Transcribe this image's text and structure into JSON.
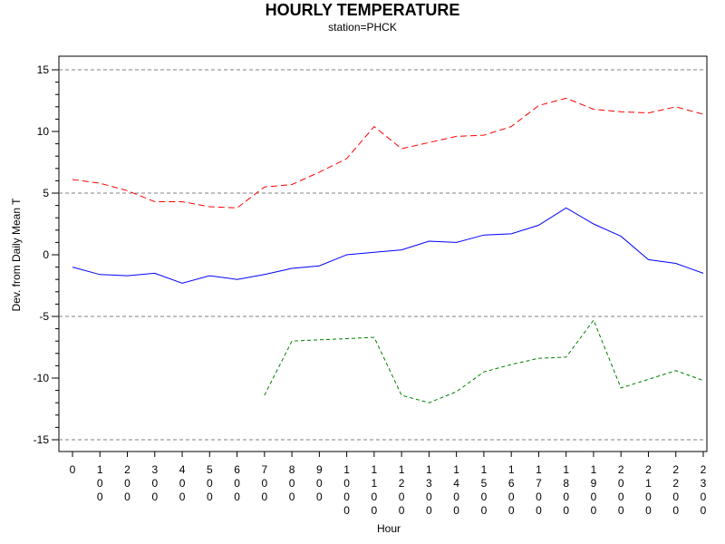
{
  "chart_data": {
    "type": "line",
    "title": "HOURLY TEMPERATURE",
    "subtitle": "station=PHCK",
    "xlabel": "Hour",
    "ylabel": "Dev. from Daily Mean T",
    "x": [
      0,
      100,
      200,
      300,
      400,
      500,
      600,
      700,
      800,
      900,
      1000,
      1100,
      1200,
      1300,
      1400,
      1500,
      1600,
      1700,
      1800,
      1900,
      2000,
      2100,
      2200,
      2300
    ],
    "x_tick_labels": [
      "0",
      "100",
      "200",
      "300",
      "400",
      "500",
      "600",
      "700",
      "800",
      "900",
      "1000",
      "1100",
      "1200",
      "1300",
      "1400",
      "1500",
      "1600",
      "1700",
      "1800",
      "1900",
      "2000",
      "2100",
      "2200",
      "2300"
    ],
    "ylim": [
      -15,
      15
    ],
    "y_ticks": [
      15,
      10,
      5,
      0,
      -5,
      -10,
      -15
    ],
    "reference_lines": [
      15,
      5,
      -5,
      -15
    ],
    "grid": false,
    "series": [
      {
        "color": "#ff0000",
        "dash": "dashed",
        "values": [
          6.1,
          5.8,
          5.2,
          4.3,
          4.3,
          3.9,
          3.8,
          5.5,
          5.7,
          6.7,
          7.8,
          10.4,
          8.6,
          9.1,
          9.6,
          9.7,
          10.4,
          12.1,
          12.7,
          11.8,
          11.6,
          11.5,
          12.0,
          11.4
        ]
      },
      {
        "color": "#0000ff",
        "dash": "solid",
        "values": [
          -1.0,
          -1.6,
          -1.7,
          -1.5,
          -2.3,
          -1.7,
          -2.0,
          -1.6,
          -1.1,
          -0.9,
          0.0,
          0.2,
          0.4,
          1.1,
          1.0,
          1.6,
          1.7,
          2.4,
          3.8,
          2.5,
          1.5,
          -0.4,
          -0.7,
          -1.5
        ]
      },
      {
        "color": "#008000",
        "dash": "short-dashed",
        "values": [
          null,
          null,
          null,
          null,
          null,
          null,
          null,
          -11.4,
          -7.0,
          -6.9,
          -6.8,
          -6.7,
          -11.4,
          -12.0,
          -11.1,
          -9.5,
          -8.9,
          -8.4,
          -8.3,
          -5.3,
          -10.8,
          -10.1,
          -9.4,
          -10.2
        ]
      }
    ]
  }
}
